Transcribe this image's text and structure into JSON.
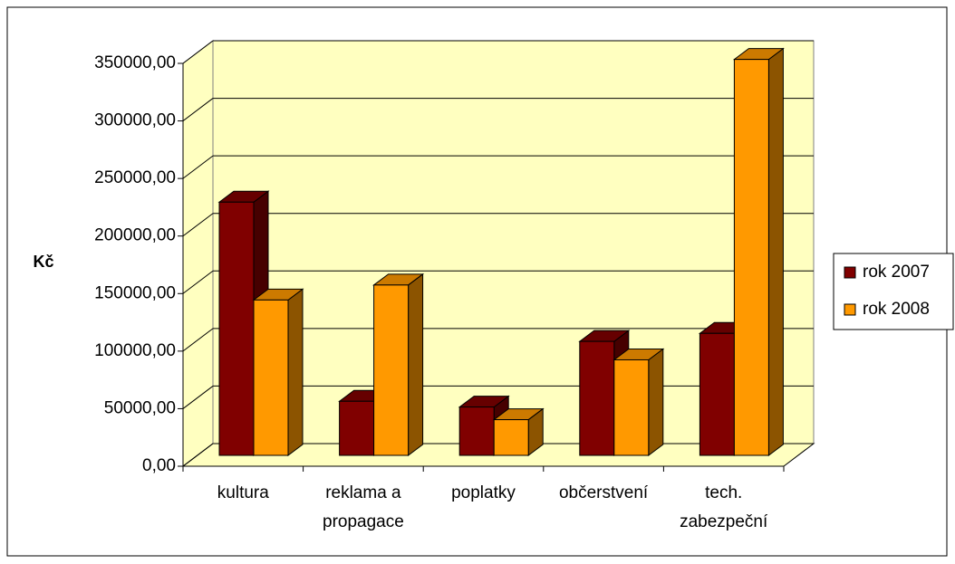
{
  "chart_data": {
    "type": "bar3d",
    "y_label": "Kč",
    "categories": [
      "kultura",
      "reklama a propagace",
      "poplatky",
      "občerstvení",
      "tech. zabezpeční"
    ],
    "series": [
      {
        "name": "rok 2007",
        "color": "#800000",
        "values": [
          220000,
          47000,
          42000,
          99000,
          106000
        ]
      },
      {
        "name": "rok 2008",
        "color": "#ff9900",
        "values": [
          135000,
          148000,
          31000,
          83000,
          344000
        ]
      }
    ],
    "ylim": [
      0,
      350000
    ],
    "yticks": [
      {
        "value": 0,
        "label": "0,00"
      },
      {
        "value": 50000,
        "label": "50000,00"
      },
      {
        "value": 100000,
        "label": "100000,00"
      },
      {
        "value": 150000,
        "label": "150000,00"
      },
      {
        "value": 200000,
        "label": "200000,00"
      },
      {
        "value": 250000,
        "label": "250000,00"
      },
      {
        "value": 300000,
        "label": "300000,00"
      },
      {
        "value": 350000,
        "label": "350000,00"
      }
    ],
    "grid": true,
    "legend": "right"
  }
}
